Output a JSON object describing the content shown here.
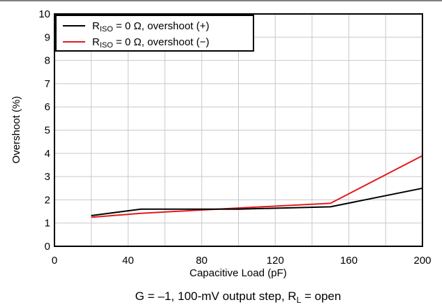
{
  "chart_data": {
    "type": "line",
    "x_ticks": [
      "0",
      "40",
      "80",
      "120",
      "160",
      "200"
    ],
    "y_ticks": [
      "0",
      "1",
      "2",
      "3",
      "4",
      "5",
      "6",
      "7",
      "8",
      "9",
      "10"
    ],
    "xlim": [
      0,
      200
    ],
    "ylim": [
      0,
      10
    ],
    "xlabel": "Capacitive Load (pF)",
    "ylabel": "Overshoot (%)",
    "grid": true,
    "legend_position": "top-left",
    "caption": {
      "main": "G = –1, 100-mV output step, R",
      "sub": "L",
      "tail": " = open"
    },
    "series": [
      {
        "name": "R_ISO = 0 Ω, overshoot (+)",
        "label_main": "R",
        "label_sub": "ISO",
        "label_tail": " = 0 Ω, overshoot (+)",
        "color": "#000000",
        "x": [
          20,
          47,
          100,
          150,
          200
        ],
        "y": [
          1.32,
          1.6,
          1.6,
          1.7,
          2.5
        ]
      },
      {
        "name": "R_ISO = 0 Ω, overshoot (−)",
        "label_main": "R",
        "label_sub": "ISO",
        "label_tail": " = 0 Ω, overshoot (−)",
        "color": "#e31a1c",
        "x": [
          20,
          47,
          100,
          150,
          200
        ],
        "y": [
          1.25,
          1.42,
          1.65,
          1.85,
          3.9
        ]
      }
    ]
  }
}
